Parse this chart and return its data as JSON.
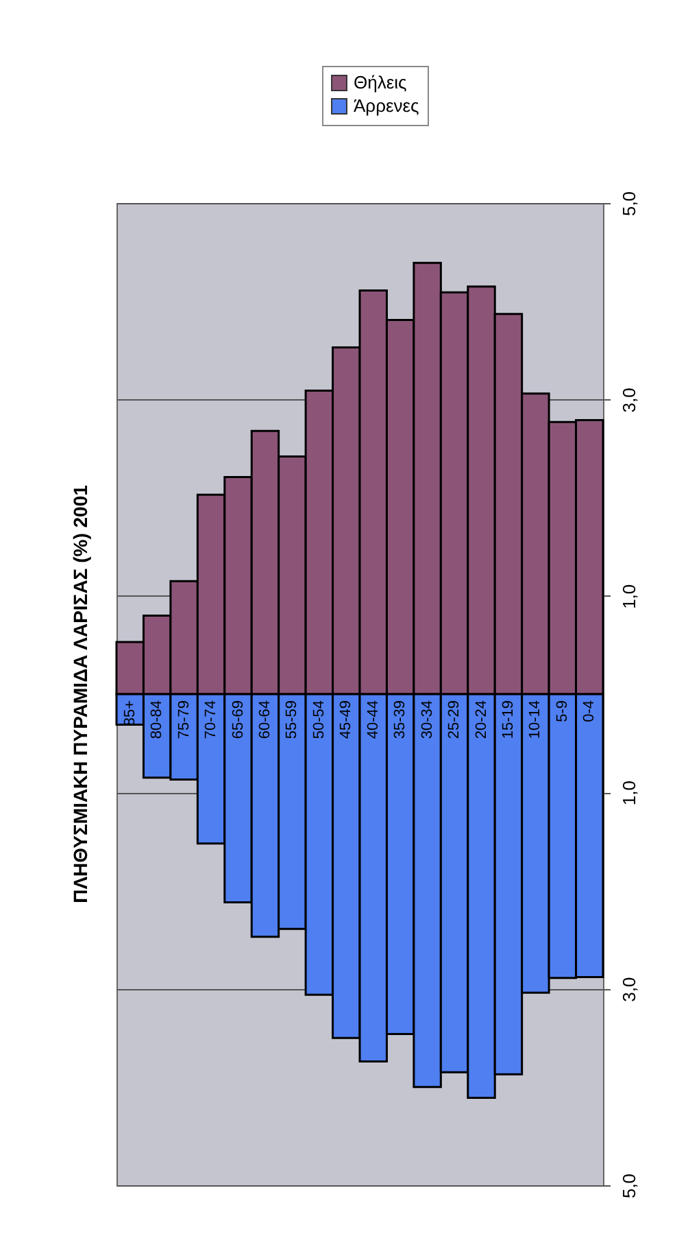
{
  "chart_data": {
    "type": "bar",
    "title": "ΠΛΗΘΥΣΜΙΑΚΗ ΠΥΡΑΜΙΔΑ ΛΑΡΙΣΑΣ (%) 2001",
    "categories": [
      "85+",
      "80-84",
      "75-79",
      "70-74",
      "65-69",
      "60-64",
      "55-59",
      "50-54",
      "45-49",
      "40-44",
      "35-39",
      "30-34",
      "25-29",
      "20-24",
      "15-19",
      "10-14",
      "5-9",
      "0-4"
    ],
    "series": [
      {
        "name": "Θήλεις",
        "color": "#8c5577",
        "values": [
          0.53,
          0.8,
          1.15,
          2.03,
          2.21,
          2.68,
          2.42,
          3.09,
          3.53,
          4.11,
          3.81,
          4.39,
          4.09,
          4.15,
          3.87,
          3.06,
          2.77,
          2.79
        ]
      },
      {
        "name": "Άρρενες",
        "color": "#4f7ff0",
        "values": [
          -0.31,
          -0.85,
          -0.87,
          -1.52,
          -2.12,
          -2.47,
          -2.39,
          -3.06,
          -3.5,
          -3.74,
          -3.46,
          -4.0,
          -3.85,
          -4.11,
          -3.87,
          -3.04,
          -2.89,
          -2.88
        ]
      }
    ],
    "ylim": [
      -5,
      5
    ],
    "yticks": [
      {
        "value": -5,
        "label": "5,0"
      },
      {
        "value": -3,
        "label": "3,0"
      },
      {
        "value": -1,
        "label": "1,0"
      },
      {
        "value": 1,
        "label": "1,0"
      },
      {
        "value": 3,
        "label": "3,0"
      },
      {
        "value": 5,
        "label": "5,0"
      }
    ],
    "grid": "y",
    "legend": "top",
    "stacked": true
  }
}
